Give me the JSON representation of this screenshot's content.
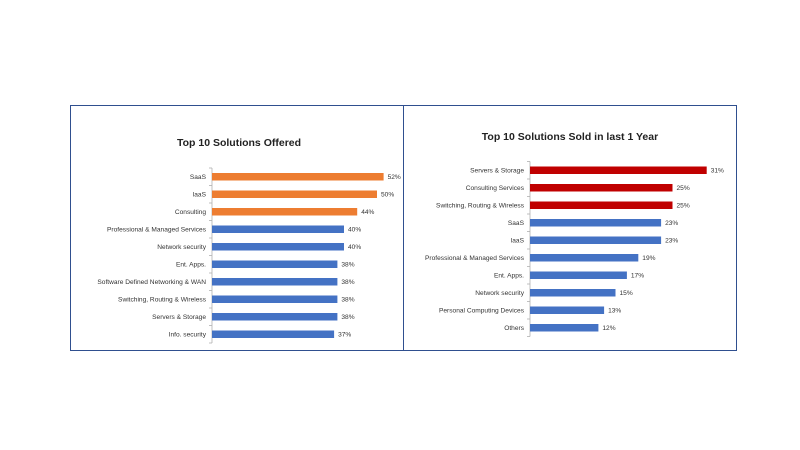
{
  "chart_data": [
    {
      "type": "bar",
      "orientation": "horizontal",
      "title": "Top 10 Solutions Offered",
      "categories": [
        "SaaS",
        "IaaS",
        "Consulting",
        "Professional & Managed Services",
        "Network security",
        "Ent. Apps.",
        "Software Defined Networking & WAN",
        "Switching, Routing & Wireless",
        "Servers & Storage",
        "Info. security"
      ],
      "values": [
        52,
        50,
        44,
        40,
        40,
        38,
        38,
        38,
        38,
        37
      ],
      "value_labels": [
        "52%",
        "50%",
        "44%",
        "40%",
        "40%",
        "38%",
        "38%",
        "38%",
        "38%",
        "37%"
      ],
      "colors": [
        "#ed7d31",
        "#ed7d31",
        "#ed7d31",
        "#4472c4",
        "#4472c4",
        "#4472c4",
        "#4472c4",
        "#4472c4",
        "#4472c4",
        "#4472c4"
      ],
      "xlim": [
        0,
        60
      ]
    },
    {
      "type": "bar",
      "orientation": "horizontal",
      "title": "Top 10 Solutions Sold in last 1 Year",
      "categories": [
        "Servers & Storage",
        "Consulting Services",
        "Switching, Routing & Wireless",
        "SaaS",
        "IaaS",
        "Professional & Managed Services",
        "Ent. Apps.",
        "Network security",
        "Personal Computing Devices",
        "Others"
      ],
      "values": [
        31,
        25,
        25,
        23,
        23,
        19,
        17,
        15,
        13,
        12
      ],
      "value_labels": [
        "31%",
        "25%",
        "25%",
        "23%",
        "23%",
        "19%",
        "17%",
        "15%",
        "13%",
        "12%"
      ],
      "colors": [
        "#c00000",
        "#c00000",
        "#c00000",
        "#4472c4",
        "#4472c4",
        "#4472c4",
        "#4472c4",
        "#4472c4",
        "#4472c4",
        "#4472c4"
      ],
      "xlim": [
        0,
        35
      ]
    }
  ]
}
